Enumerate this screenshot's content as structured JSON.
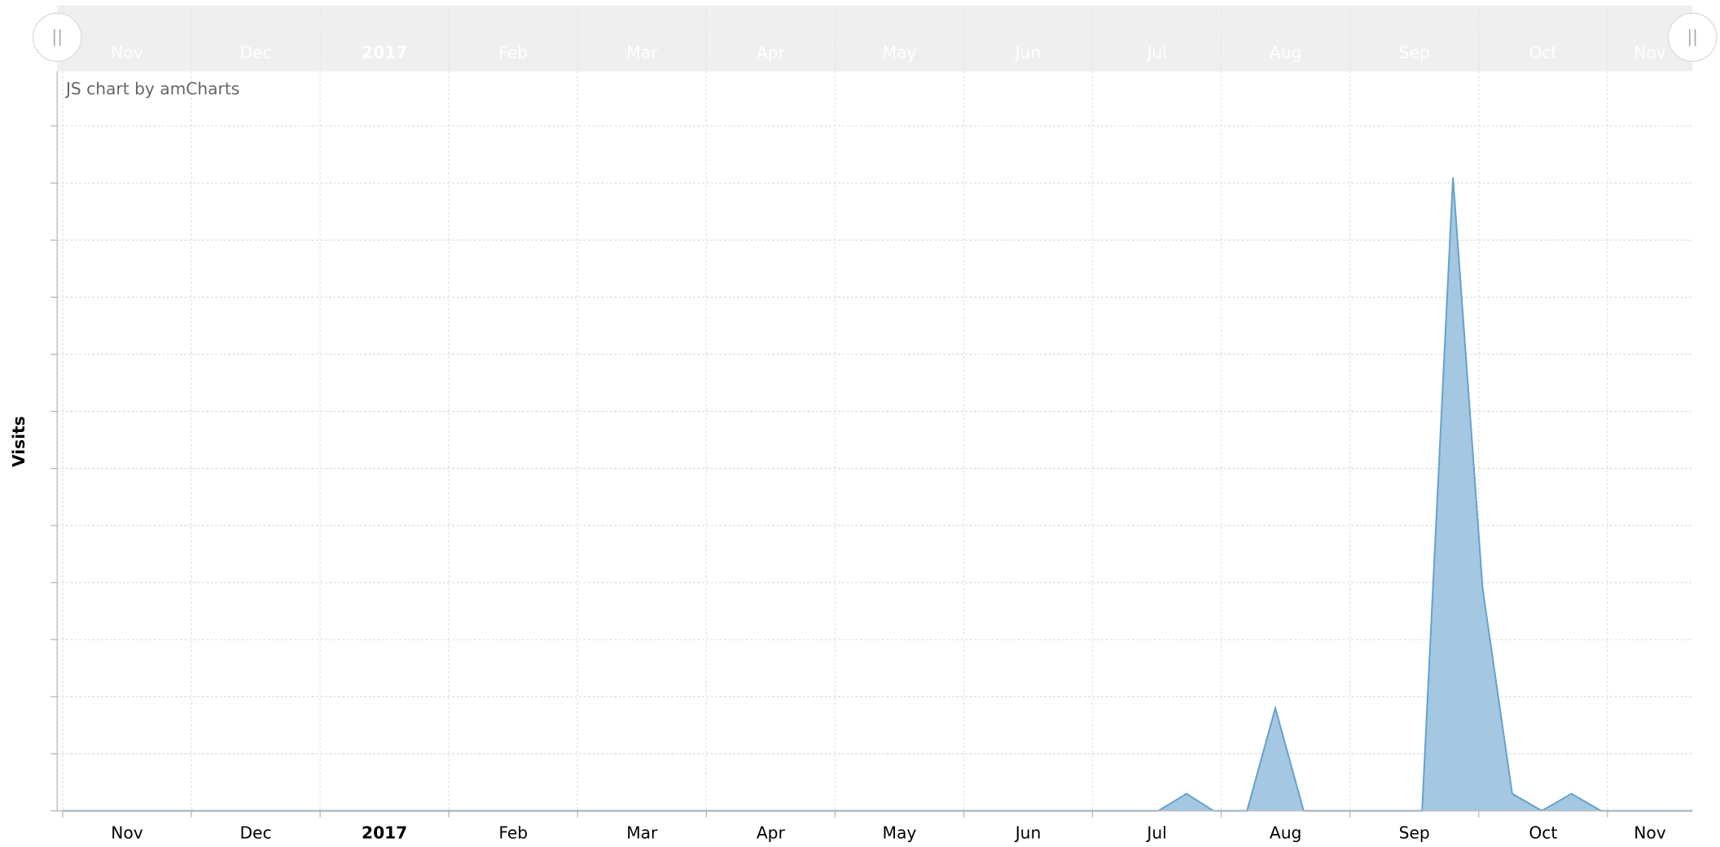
{
  "chart_data": {
    "type": "area",
    "credit": "JS chart by amCharts",
    "y_label": "Visits",
    "color": "#67a2cc",
    "fill_color": "#a5c8e2",
    "grid": true,
    "x": [
      0,
      8.51,
      8.73,
      8.94,
      9.2,
      9.42,
      9.64,
      10.56,
      10.8,
      11.03,
      11.26,
      11.49,
      11.72,
      11.95,
      12.66
    ],
    "series": [
      {
        "name": "Visits",
        "color": "#67a2cc",
        "values": [
          0,
          0,
          0.3,
          0,
          0,
          1.8,
          0,
          0,
          11.1,
          3.9,
          0.3,
          0,
          0.3,
          0,
          0
        ]
      }
    ],
    "xlim": [
      0,
      12.66
    ],
    "xticks": [
      {
        "value": 0,
        "label": "Nov"
      },
      {
        "value": 1,
        "label": "Dec"
      },
      {
        "value": 2,
        "label": "2017"
      },
      {
        "value": 3,
        "label": "Feb"
      },
      {
        "value": 4,
        "label": "Mar"
      },
      {
        "value": 5,
        "label": "Apr"
      },
      {
        "value": 6,
        "label": "May"
      },
      {
        "value": 7,
        "label": "Jun"
      },
      {
        "value": 8,
        "label": "Jul"
      },
      {
        "value": 9,
        "label": "Aug"
      },
      {
        "value": 10,
        "label": "Sep"
      },
      {
        "value": 11,
        "label": "Oct"
      },
      {
        "value": 12,
        "label": "Nov"
      }
    ],
    "ylim": [
      0,
      12
    ],
    "yticks": [
      0,
      1,
      2,
      3,
      4,
      5,
      6,
      7,
      8,
      9,
      10,
      11,
      12
    ]
  }
}
